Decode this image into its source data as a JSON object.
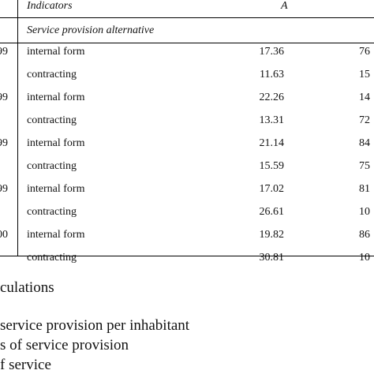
{
  "table": {
    "header": {
      "indicators": "Indicators",
      "col_a": "A",
      "col_b": ""
    },
    "subheader": "Service provision alternative",
    "rows": [
      {
        "year": "99",
        "alt": "internal form",
        "a": "17.36",
        "b": "76"
      },
      {
        "year": "",
        "alt": "contracting",
        "a": "11.63",
        "b": "15"
      },
      {
        "year": "99",
        "alt": "internal form",
        "a": "22.26",
        "b": "14"
      },
      {
        "year": "",
        "alt": "contracting",
        "a": "13.31",
        "b": "72"
      },
      {
        "year": "99",
        "alt": "internal form",
        "a": "21.14",
        "b": "84"
      },
      {
        "year": "",
        "alt": "contracting",
        "a": "15.59",
        "b": "75"
      },
      {
        "year": "99",
        "alt": "internal form",
        "a": "17.02",
        "b": "81"
      },
      {
        "year": "",
        "alt": "contracting",
        "a": "26.61",
        "b": "10"
      },
      {
        "year": "00",
        "alt": "internal form",
        "a": "19.82",
        "b": "86"
      },
      {
        "year": "",
        "alt": "contracting",
        "a": "30.81",
        "b": "10"
      }
    ]
  },
  "footnotes": {
    "source": "culations",
    "line1": "service provision per inhabitant",
    "line2": "s of service provision",
    "line3": "f service"
  }
}
